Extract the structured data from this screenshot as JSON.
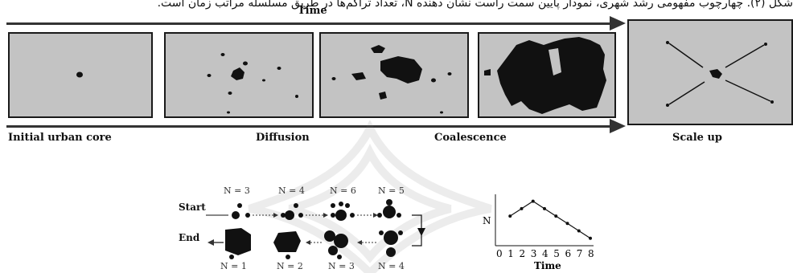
{
  "caption": "شکل (۲). چهارچوب مفهومی رشد شهری، نمودار پایین سمت راست نشان دهنده N، تعداد تراکم‌ها در طریق مسلسله مراتب زمان است.",
  "top_axis_label": "Time",
  "stages": {
    "initial": "Initial urban core",
    "diffusion": "Diffusion",
    "coalescence": "Coalescence",
    "scale_up": "Scale up"
  },
  "cycle": {
    "start_label": "Start",
    "end_label": "End",
    "top_counts": [
      "N = 3",
      "N = 4",
      "N = 6",
      "N = 5"
    ],
    "bottom_counts": [
      "N = 1",
      "N = 2",
      "N = 3",
      "N = 4"
    ]
  },
  "chart_data": {
    "type": "line",
    "x": [
      0,
      1,
      2,
      3,
      4,
      5,
      6,
      7,
      8
    ],
    "y": [
      3,
      4,
      5,
      6,
      5,
      4,
      3,
      2,
      1
    ],
    "xlabel": "Time",
    "ylabel": "N",
    "x_ticks": [
      "0",
      "1",
      "2",
      "3",
      "4",
      "5",
      "6",
      "7",
      "8"
    ],
    "xlim": [
      0,
      8
    ],
    "ylim": [
      0,
      6.5
    ],
    "grid": false
  },
  "colors": {
    "panel": "#c3c3c3",
    "blob": "#111111",
    "line": "#333333"
  }
}
